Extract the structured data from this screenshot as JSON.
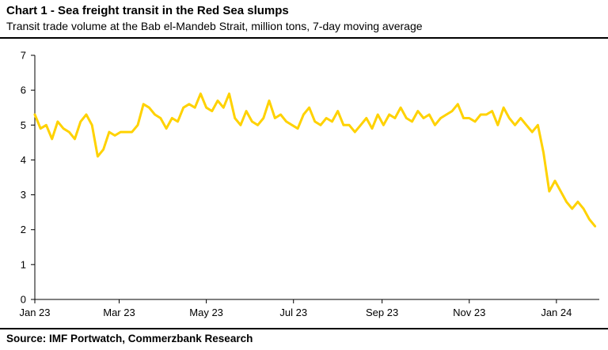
{
  "title": "Chart 1 - Sea freight transit in the Red Sea slumps",
  "subtitle": "Transit trade volume at the Bab el-Mandeb Strait, million tons, 7-day moving average",
  "source": "Source: IMF Portwatch, Commerzbank Research",
  "colors": {
    "series": "#FFD200",
    "axis": "#000000"
  },
  "chart_data": {
    "type": "line",
    "title": "Chart 1 - Sea freight transit in the Red Sea slumps",
    "xlabel": "",
    "ylabel": "",
    "ylim": [
      0,
      7
    ],
    "yticks": [
      0,
      1,
      2,
      3,
      4,
      5,
      6,
      7
    ],
    "xlim": [
      "2023-01-01",
      "2024-01-31"
    ],
    "xticks": [
      {
        "date": "2023-01-01",
        "label": "Jan 23"
      },
      {
        "date": "2023-03-01",
        "label": "Mar 23"
      },
      {
        "date": "2023-05-01",
        "label": "May 23"
      },
      {
        "date": "2023-07-01",
        "label": "Jul 23"
      },
      {
        "date": "2023-09-01",
        "label": "Sep 23"
      },
      {
        "date": "2023-11-01",
        "label": "Nov 23"
      },
      {
        "date": "2024-01-01",
        "label": "Jan 24"
      }
    ],
    "grid": false,
    "legend": "none",
    "series": [
      {
        "x": [
          "2023-01-01",
          "2023-01-05",
          "2023-01-09",
          "2023-01-13",
          "2023-01-17",
          "2023-01-21",
          "2023-01-25",
          "2023-01-29",
          "2023-02-02",
          "2023-02-06",
          "2023-02-10",
          "2023-02-14",
          "2023-02-18",
          "2023-02-22",
          "2023-02-26",
          "2023-03-02",
          "2023-03-06",
          "2023-03-10",
          "2023-03-14",
          "2023-03-18",
          "2023-03-22",
          "2023-03-26",
          "2023-03-30",
          "2023-04-03",
          "2023-04-07",
          "2023-04-11",
          "2023-04-15",
          "2023-04-19",
          "2023-04-23",
          "2023-04-27",
          "2023-05-01",
          "2023-05-05",
          "2023-05-09",
          "2023-05-13",
          "2023-05-17",
          "2023-05-21",
          "2023-05-25",
          "2023-05-29",
          "2023-06-02",
          "2023-06-06",
          "2023-06-10",
          "2023-06-14",
          "2023-06-18",
          "2023-06-22",
          "2023-06-26",
          "2023-06-30",
          "2023-07-04",
          "2023-07-08",
          "2023-07-12",
          "2023-07-16",
          "2023-07-20",
          "2023-07-24",
          "2023-07-28",
          "2023-08-01",
          "2023-08-05",
          "2023-08-09",
          "2023-08-13",
          "2023-08-17",
          "2023-08-21",
          "2023-08-25",
          "2023-08-29",
          "2023-09-02",
          "2023-09-06",
          "2023-09-10",
          "2023-09-14",
          "2023-09-18",
          "2023-09-22",
          "2023-09-26",
          "2023-09-30",
          "2023-10-04",
          "2023-10-08",
          "2023-10-12",
          "2023-10-16",
          "2023-10-20",
          "2023-10-24",
          "2023-10-28",
          "2023-11-01",
          "2023-11-05",
          "2023-11-09",
          "2023-11-13",
          "2023-11-17",
          "2023-11-21",
          "2023-11-25",
          "2023-11-29",
          "2023-12-03",
          "2023-12-07",
          "2023-12-11",
          "2023-12-15",
          "2023-12-19",
          "2023-12-23",
          "2023-12-27",
          "2023-12-31",
          "2024-01-04",
          "2024-01-08",
          "2024-01-12",
          "2024-01-16",
          "2024-01-20",
          "2024-01-24",
          "2024-01-28"
        ],
        "values": [
          5.3,
          4.9,
          5.0,
          4.6,
          5.1,
          4.9,
          4.8,
          4.6,
          5.1,
          5.3,
          5.0,
          4.1,
          4.3,
          4.8,
          4.7,
          4.8,
          4.8,
          4.8,
          5.0,
          5.6,
          5.5,
          5.3,
          5.2,
          4.9,
          5.2,
          5.1,
          5.5,
          5.6,
          5.5,
          5.9,
          5.5,
          5.4,
          5.7,
          5.5,
          5.9,
          5.2,
          5.0,
          5.4,
          5.1,
          5.0,
          5.2,
          5.7,
          5.2,
          5.3,
          5.1,
          5.0,
          4.9,
          5.3,
          5.5,
          5.1,
          5.0,
          5.2,
          5.1,
          5.4,
          5.0,
          5.0,
          4.8,
          5.0,
          5.2,
          4.9,
          5.3,
          5.0,
          5.3,
          5.2,
          5.5,
          5.2,
          5.1,
          5.4,
          5.2,
          5.3,
          5.0,
          5.2,
          5.3,
          5.4,
          5.6,
          5.2,
          5.2,
          5.1,
          5.3,
          5.3,
          5.4,
          5.0,
          5.5,
          5.2,
          5.0,
          5.2,
          5.0,
          4.8,
          5.0,
          4.2,
          3.1,
          3.4,
          3.1,
          2.8,
          2.6,
          2.8,
          2.6,
          2.3,
          2.1
        ]
      }
    ]
  }
}
